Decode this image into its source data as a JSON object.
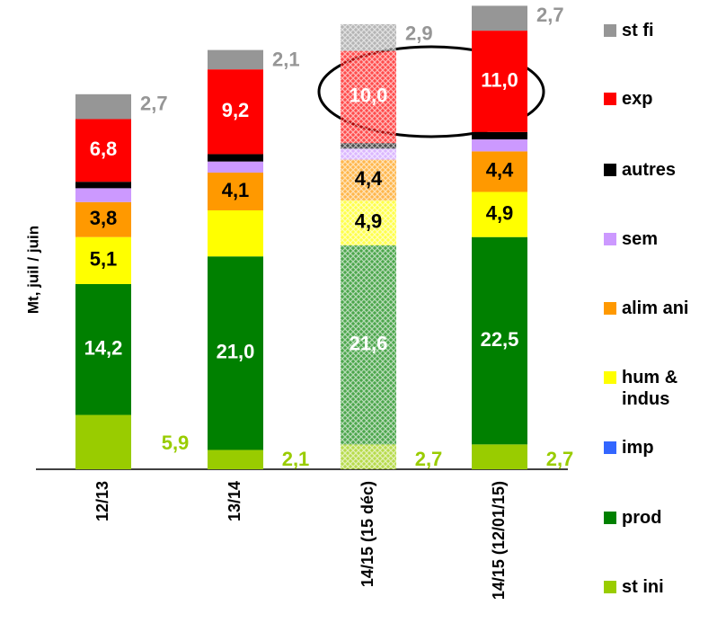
{
  "chart_data": {
    "type": "stacked_bar",
    "y_axis_label": "Mt, juil / juin",
    "categories": [
      "12/13",
      "13/14",
      "14/15 (15 déc)",
      "14/15 (12/01/15)"
    ],
    "hatched": [
      false,
      false,
      true,
      false
    ],
    "series": [
      {
        "name": "st ini",
        "color": "#99cc00",
        "label_color": "#99cc00",
        "label_position": "right-bottom",
        "values": [
          5.9,
          2.1,
          2.7,
          2.7
        ],
        "value_labels": [
          "5,9",
          "2,1",
          "2,7",
          "2,7"
        ]
      },
      {
        "name": "prod",
        "color": "#008000",
        "label_color": "#ffffff",
        "label_position": "inside",
        "values": [
          14.2,
          21.0,
          21.6,
          22.5
        ],
        "value_labels": [
          "14,2",
          "21,0",
          "21,6",
          "22,5"
        ]
      },
      {
        "name": "imp",
        "color": "#3366ff",
        "label_color": "#000000",
        "label_position": "none",
        "values": [
          0,
          0,
          0,
          0
        ],
        "value_labels": [
          null,
          null,
          null,
          null
        ]
      },
      {
        "name": "hum & indus",
        "color": "#ffff00",
        "label_color": "#000000",
        "label_position": "inside",
        "values": [
          5.1,
          5,
          4.9,
          4.9
        ],
        "value_labels": [
          "5,1",
          null,
          "4,9",
          "4,9"
        ]
      },
      {
        "name": "alim ani",
        "color": "#ff9900",
        "label_color": "#000000",
        "label_position": "inside",
        "values": [
          3.8,
          4.1,
          4.4,
          4.4
        ],
        "value_labels": [
          "3,8",
          "4,1",
          "4,4",
          "4,4"
        ]
      },
      {
        "name": "sem",
        "color": "#cc99ff",
        "label_color": "#000000",
        "label_position": "none",
        "values": [
          1.5,
          1.2,
          1.2,
          1.3
        ],
        "value_labels": [
          null,
          null,
          null,
          null
        ]
      },
      {
        "name": "autres",
        "color": "#000000",
        "label_color": "#ffffff",
        "label_position": "none",
        "values": [
          0.7,
          0.8,
          0.6,
          0.8
        ],
        "value_labels": [
          null,
          null,
          null,
          null
        ]
      },
      {
        "name": "exp",
        "color": "#ff0000",
        "label_color": "#ffffff",
        "label_position": "inside",
        "values": [
          6.8,
          9.2,
          10.0,
          11.0
        ],
        "value_labels": [
          "6,8",
          "9,2",
          "10,0",
          "11,0"
        ]
      },
      {
        "name": "st fi",
        "color": "#969696",
        "label_color": "#969696",
        "label_position": "right-top",
        "values": [
          2.7,
          2.1,
          2.9,
          2.7
        ],
        "value_labels": [
          "2,7",
          "2,1",
          "2,9",
          "2,7"
        ]
      }
    ]
  }
}
